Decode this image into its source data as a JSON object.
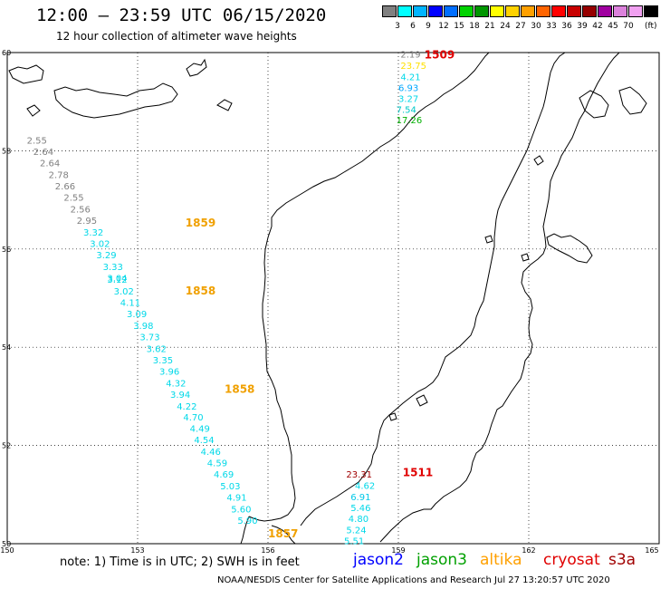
{
  "header": {
    "title": "12:00 – 23:59 UTC 06/15/2020",
    "subtitle": "12 hour collection of altimeter wave heights"
  },
  "legend": {
    "colors": [
      "#808080",
      "#00ffff",
      "#00b4ff",
      "#0000ff",
      "#006eff",
      "#00d200",
      "#009600",
      "#ffff00",
      "#ffd200",
      "#ffa000",
      "#ff6400",
      "#ff0000",
      "#c80000",
      "#960000",
      "#a000a0",
      "#dc82dc",
      "#f0a0f0",
      "#000000"
    ],
    "labels": [
      "3",
      "6",
      "9",
      "12",
      "15",
      "18",
      "21",
      "24",
      "27",
      "30",
      "33",
      "36",
      "39",
      "42",
      "45",
      "70"
    ],
    "unit": "(ft)"
  },
  "map": {
    "lon_ticks": [
      "150",
      "153",
      "156",
      "159",
      "162",
      "165"
    ],
    "lat_ticks": [
      "50",
      "52",
      "54",
      "56",
      "58",
      "60"
    ],
    "tracks": [
      {
        "time_labels": [
          {
            "text": "1509",
            "color": "#e00000",
            "lon": 159.6,
            "lat": 59.95
          }
        ],
        "points": [
          {
            "v": "2.19",
            "c": "#808080",
            "lon": 159.05,
            "lat": 59.95
          },
          {
            "v": "23.75",
            "c": "#ffe000",
            "lon": 159.05,
            "lat": 59.72
          },
          {
            "v": "4.21",
            "c": "#00d8e8",
            "lon": 159.05,
            "lat": 59.49
          },
          {
            "v": "6.93",
            "c": "#00a8ff",
            "lon": 159.0,
            "lat": 59.27
          },
          {
            "v": "3.27",
            "c": "#00d8e8",
            "lon": 159.0,
            "lat": 59.05
          },
          {
            "v": "7.54",
            "c": "#00c8c8",
            "lon": 158.95,
            "lat": 58.83
          },
          {
            "v": "17.26",
            "c": "#00b000",
            "lon": 158.95,
            "lat": 58.62
          }
        ]
      },
      {
        "time_labels": [
          {
            "text": "1859",
            "color": "#f0a000",
            "lon": 154.1,
            "lat": 56.53
          },
          {
            "text": "1858",
            "color": "#f0a000",
            "lon": 154.1,
            "lat": 55.15
          },
          {
            "text": "1858",
            "color": "#f0a000",
            "lon": 155.0,
            "lat": 53.15
          },
          {
            "text": "1857",
            "color": "#f0a000",
            "lon": 156.0,
            "lat": 50.2
          }
        ],
        "points": [
          {
            "v": "2.55",
            "c": "#808080",
            "lon": 150.45,
            "lat": 58.2
          },
          {
            "v": "2.64",
            "c": "#808080",
            "lon": 150.6,
            "lat": 57.97
          },
          {
            "v": "2.64",
            "c": "#808080",
            "lon": 150.75,
            "lat": 57.74
          },
          {
            "v": "2.78",
            "c": "#808080",
            "lon": 150.95,
            "lat": 57.5
          },
          {
            "v": "2.66",
            "c": "#808080",
            "lon": 151.1,
            "lat": 57.27
          },
          {
            "v": "2.55",
            "c": "#808080",
            "lon": 151.3,
            "lat": 57.04
          },
          {
            "v": "2.56",
            "c": "#808080",
            "lon": 151.45,
            "lat": 56.8
          },
          {
            "v": "2.95",
            "c": "#808080",
            "lon": 151.6,
            "lat": 56.57
          },
          {
            "v": "3.32",
            "c": "#00d8e8",
            "lon": 151.75,
            "lat": 56.33
          },
          {
            "v": "3.02",
            "c": "#00d8e8",
            "lon": 151.9,
            "lat": 56.1
          },
          {
            "v": "3.29",
            "c": "#00d8e8",
            "lon": 152.05,
            "lat": 55.87
          },
          {
            "v": "3.33",
            "c": "#00d8e8",
            "lon": 152.2,
            "lat": 55.63
          },
          {
            "v": "3.04",
            "c": "#00d8e8",
            "lon": 152.3,
            "lat": 55.4
          },
          {
            "v": "3.12",
            "c": "#00d8e8",
            "lon": 152.3,
            "lat": 55.37
          },
          {
            "v": "3.02",
            "c": "#00d8e8",
            "lon": 152.45,
            "lat": 55.13
          },
          {
            "v": "4.11",
            "c": "#00d8e8",
            "lon": 152.6,
            "lat": 54.9
          },
          {
            "v": "3.09",
            "c": "#00d8e8",
            "lon": 152.75,
            "lat": 54.67
          },
          {
            "v": "3.98",
            "c": "#00d8e8",
            "lon": 152.9,
            "lat": 54.43
          },
          {
            "v": "3.73",
            "c": "#00d8e8",
            "lon": 153.05,
            "lat": 54.2
          },
          {
            "v": "3.62",
            "c": "#00d8e8",
            "lon": 153.2,
            "lat": 53.96
          },
          {
            "v": "3.35",
            "c": "#00d8e8",
            "lon": 153.35,
            "lat": 53.73
          },
          {
            "v": "3.96",
            "c": "#00d8e8",
            "lon": 153.5,
            "lat": 53.5
          },
          {
            "v": "4.32",
            "c": "#00d8e8",
            "lon": 153.65,
            "lat": 53.26
          },
          {
            "v": "3.94",
            "c": "#00d8e8",
            "lon": 153.75,
            "lat": 53.03
          },
          {
            "v": "4.22",
            "c": "#00d8e8",
            "lon": 153.9,
            "lat": 52.79
          },
          {
            "v": "4.70",
            "c": "#00d8e8",
            "lon": 154.05,
            "lat": 52.56
          },
          {
            "v": "4.49",
            "c": "#00d8e8",
            "lon": 154.2,
            "lat": 52.33
          },
          {
            "v": "4.54",
            "c": "#00d8e8",
            "lon": 154.3,
            "lat": 52.1
          },
          {
            "v": "4.46",
            "c": "#00d8e8",
            "lon": 154.45,
            "lat": 51.86
          },
          {
            "v": "4.59",
            "c": "#00d8e8",
            "lon": 154.6,
            "lat": 51.63
          },
          {
            "v": "4.69",
            "c": "#00d8e8",
            "lon": 154.75,
            "lat": 51.4
          },
          {
            "v": "5.03",
            "c": "#00d8e8",
            "lon": 154.9,
            "lat": 51.16
          },
          {
            "v": "4.91",
            "c": "#00d8e8",
            "lon": 155.05,
            "lat": 50.93
          },
          {
            "v": "5.60",
            "c": "#00d8e8",
            "lon": 155.15,
            "lat": 50.69
          },
          {
            "v": "5.90",
            "c": "#00d8e8",
            "lon": 155.3,
            "lat": 50.46
          }
        ]
      },
      {
        "time_labels": [
          {
            "text": "1511",
            "color": "#e00000",
            "lon": 159.1,
            "lat": 51.45
          }
        ],
        "points": [
          {
            "v": "23.31",
            "c": "#a00000",
            "lon": 157.8,
            "lat": 51.4
          },
          {
            "v": "4.62",
            "c": "#00d8e8",
            "lon": 158.0,
            "lat": 51.17
          },
          {
            "v": "6.91",
            "c": "#00c8e8",
            "lon": 157.9,
            "lat": 50.94
          },
          {
            "v": "5.46",
            "c": "#00d8e8",
            "lon": 157.9,
            "lat": 50.72
          },
          {
            "v": "4.80",
            "c": "#00d8e8",
            "lon": 157.85,
            "lat": 50.5
          },
          {
            "v": "5.24",
            "c": "#00d8e8",
            "lon": 157.8,
            "lat": 50.27
          },
          {
            "v": "5.51",
            "c": "#00d8e8",
            "lon": 157.75,
            "lat": 50.05
          }
        ]
      }
    ]
  },
  "footer": {
    "note": "note: 1) Time is in UTC; 2) SWH is in feet",
    "missions": [
      {
        "name": "jason2",
        "color": "#0000ff"
      },
      {
        "name": "jason3",
        "color": "#00a000"
      },
      {
        "name": "altika",
        "color": "#ffa000"
      },
      {
        "name": "cryosat",
        "color": "#e00000"
      },
      {
        "name": "s3a",
        "color": "#a00000"
      }
    ],
    "credit": "NOAA/NESDIS Center for Satellite Applications and Research    Jul 27 13:20:57 UTC 2020"
  }
}
